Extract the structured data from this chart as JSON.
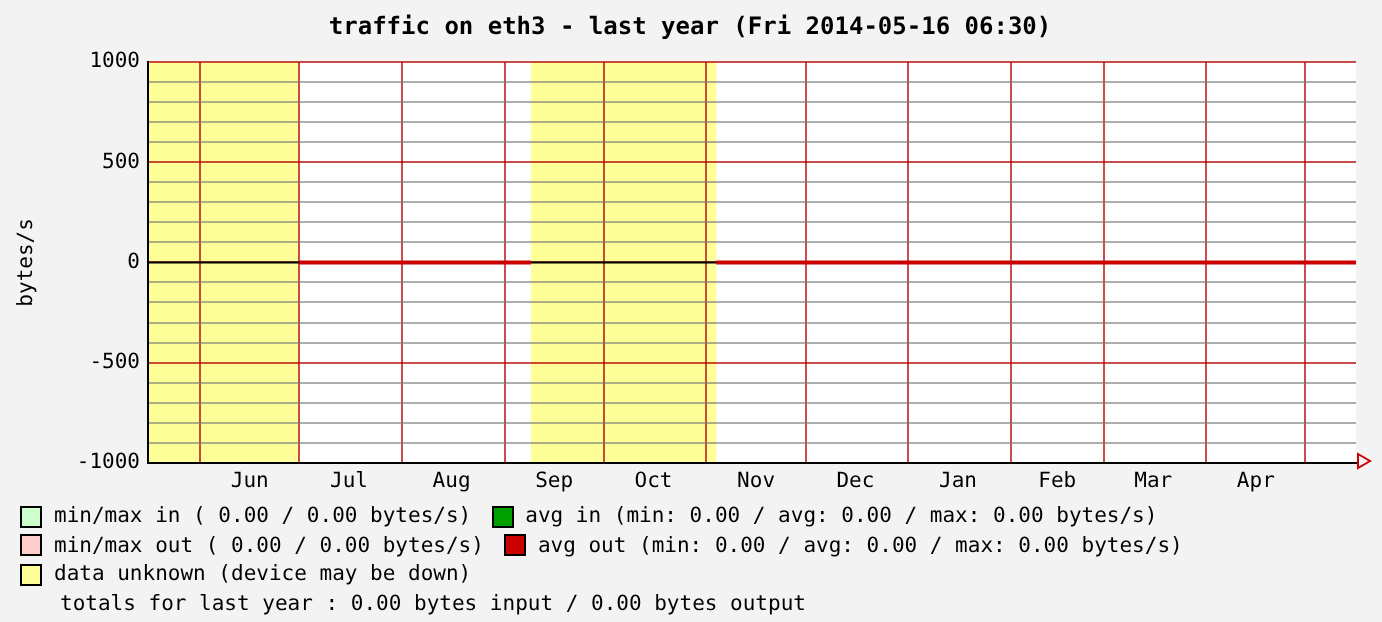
{
  "chart_data": {
    "type": "line",
    "title": "traffic on eth3 - last year (Fri 2014-05-16 06:30)",
    "ylabel": "bytes/s",
    "xlim": [
      "2013-05-16T06:30",
      "2014-05-16T06:30"
    ],
    "xticks": [
      {
        "value": "2013-06-01",
        "label": null
      },
      {
        "value": "2013-06-16",
        "label": "Jun"
      },
      {
        "value": "2013-07-01",
        "label": null
      },
      {
        "value": "2013-07-16",
        "label": "Jul"
      },
      {
        "value": "2013-08-01",
        "label": null
      },
      {
        "value": "2013-08-16",
        "label": "Aug"
      },
      {
        "value": "2013-09-01",
        "label": null
      },
      {
        "value": "2013-09-16",
        "label": "Sep"
      },
      {
        "value": "2013-10-01",
        "label": null
      },
      {
        "value": "2013-10-16",
        "label": "Oct"
      },
      {
        "value": "2013-11-01",
        "label": null
      },
      {
        "value": "2013-11-16",
        "label": "Nov"
      },
      {
        "value": "2013-12-01",
        "label": null
      },
      {
        "value": "2013-12-16",
        "label": "Dec"
      },
      {
        "value": "2014-01-01",
        "label": null
      },
      {
        "value": "2014-01-16",
        "label": "Jan"
      },
      {
        "value": "2014-02-01",
        "label": null
      },
      {
        "value": "2014-02-15",
        "label": "Feb"
      },
      {
        "value": "2014-03-01",
        "label": null
      },
      {
        "value": "2014-03-16",
        "label": "Mar"
      },
      {
        "value": "2014-04-01",
        "label": null
      },
      {
        "value": "2014-04-16",
        "label": "Apr"
      },
      {
        "value": "2014-05-01",
        "label": null
      }
    ],
    "ylim": [
      -1000,
      1000
    ],
    "yticks": [
      -1000,
      {
        "value": -900,
        "label": null
      },
      {
        "value": -800,
        "label": null
      },
      {
        "value": -700,
        "label": null
      },
      {
        "value": -600,
        "label": null
      },
      -500,
      {
        "value": -400,
        "label": null
      },
      {
        "value": -300,
        "label": null
      },
      {
        "value": -200,
        "label": null
      },
      {
        "value": -100,
        "label": null
      },
      0,
      {
        "value": 100,
        "label": null
      },
      {
        "value": 200,
        "label": null
      },
      {
        "value": 300,
        "label": null
      },
      {
        "value": 400,
        "label": null
      },
      500,
      {
        "value": 600,
        "label": null
      },
      {
        "value": 700,
        "label": null
      },
      {
        "value": 800,
        "label": null
      },
      {
        "value": 900,
        "label": null
      },
      1000
    ],
    "grid": true,
    "series": [
      {
        "name": "min/max in",
        "color": "#ccffcc",
        "values": [
          null
        ]
      },
      {
        "name": "avg in",
        "color": "#00a000",
        "values": [
          null
        ]
      },
      {
        "name": "min/max out",
        "color": "#ffcccc",
        "values": [
          null
        ]
      },
      {
        "name": "avg out",
        "color": "#cc0000",
        "x": [
          "2013-07-01",
          "2013-09-09",
          "2013-09-10",
          "2013-11-04",
          "2014-05-16T06:30"
        ],
        "values": [
          0,
          0,
          null,
          0,
          0
        ]
      }
    ],
    "bands": [
      {
        "axis": "x",
        "from": "2013-05-16T06:30",
        "to": "2013-07-01",
        "label": "data unknown (device may be down)",
        "color": "#ffff99"
      },
      {
        "axis": "x",
        "from": "2013-09-09",
        "to": "2013-11-04",
        "color": "#ffff99"
      }
    ],
    "ref_lines": [
      {
        "axis": "y",
        "value": 0,
        "color": "#000000"
      }
    ],
    "legend": "bottom",
    "annotations": [
      "( 0.00 / 0.00 bytes/s)",
      "(min: 0.00 / avg: 0.00 / max: 0.00 bytes/s)",
      "( 0.00 / 0.00 bytes/s)",
      "(min: 0.00 / avg: 0.00 / max: 0.00 bytes/s)",
      "totals for last year : 0.00 bytes input / 0.00 bytes output"
    ]
  }
}
